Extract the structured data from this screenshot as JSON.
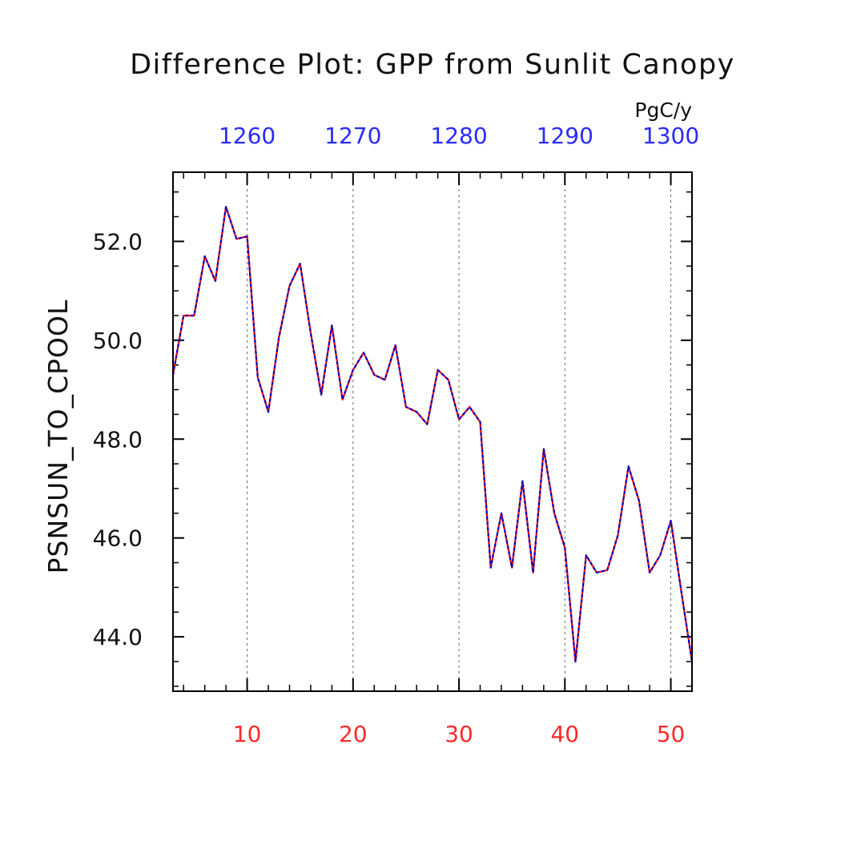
{
  "chart_data": {
    "type": "line",
    "title": "Difference Plot: GPP from Sunlit Canopy",
    "ylabel": "PSNSUN_TO_CPOOL",
    "units": "PgC/y",
    "xlim": [
      3,
      52
    ],
    "ylim": [
      42.9,
      53.4
    ],
    "bottom_ticks": [
      "10",
      "20",
      "30",
      "40",
      "50"
    ],
    "top_ticks": [
      "1260",
      "1270",
      "1280",
      "1290",
      "1300"
    ],
    "y_ticks": [
      "44.0",
      "46.0",
      "48.0",
      "50.0",
      "52.0"
    ],
    "grid": "dashed vertical lines at major x ticks",
    "colors": {
      "bottom_axis": "#ff2a2a",
      "top_axis": "#2a2aff",
      "line_red": "#ff0000",
      "line_blue": "#0000cc"
    },
    "series": [
      {
        "x": [
          3,
          4,
          5,
          6,
          7,
          8,
          9,
          10,
          11,
          12,
          13,
          14,
          15,
          16,
          17,
          18,
          19,
          20,
          21,
          22,
          23,
          24,
          25,
          26,
          27,
          28,
          29,
          30,
          31,
          32,
          33,
          34,
          35,
          36,
          37,
          38,
          39,
          40,
          41,
          42,
          43,
          44,
          45,
          46,
          47,
          48,
          49,
          50,
          51,
          52
        ],
        "values": [
          49.3,
          50.5,
          50.5,
          51.7,
          51.2,
          52.7,
          52.05,
          52.1,
          49.25,
          48.55,
          50.05,
          51.1,
          51.55,
          50.15,
          48.9,
          50.3,
          48.8,
          49.4,
          49.75,
          49.3,
          49.2,
          49.9,
          48.65,
          48.55,
          48.3,
          49.4,
          49.2,
          48.4,
          48.65,
          48.35,
          45.4,
          46.5,
          45.4,
          47.15,
          45.3,
          47.8,
          46.5,
          45.8,
          43.5,
          45.65,
          45.3,
          45.35,
          46.05,
          47.45,
          46.75,
          45.3,
          45.65,
          46.35,
          44.9,
          43.5
        ]
      }
    ]
  }
}
